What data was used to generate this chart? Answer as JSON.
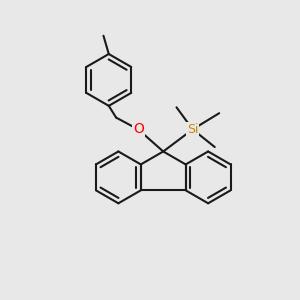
{
  "bg_color": "#e8e8e8",
  "bond_color": "#1a1a1a",
  "O_color": "#ff0000",
  "Si_color": "#cc8800",
  "line_width": 1.5,
  "font_size_O": 10,
  "font_size_Si": 9,
  "xlim": [
    0.0,
    1.0
  ],
  "ylim": [
    0.05,
    1.05
  ]
}
